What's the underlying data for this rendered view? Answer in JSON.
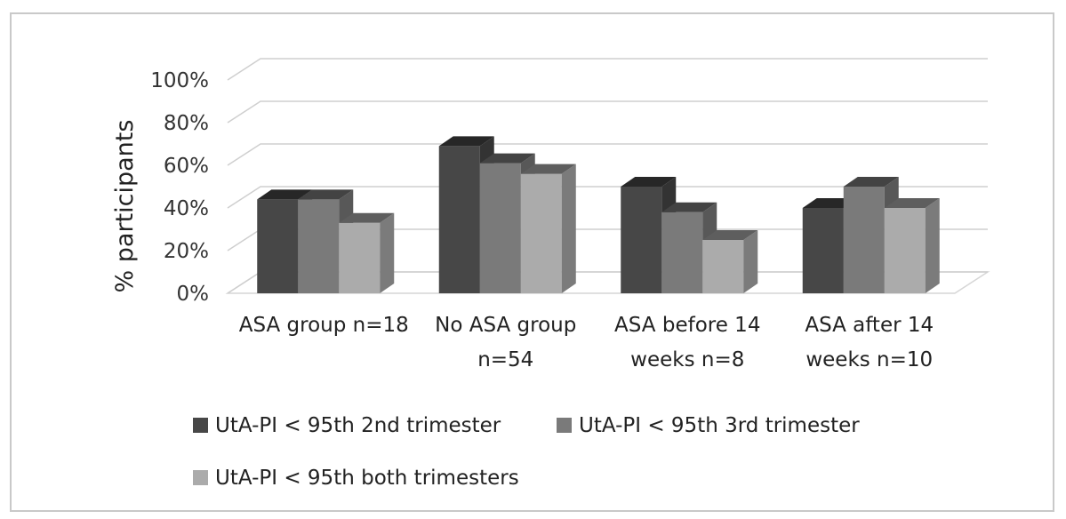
{
  "chart_data": {
    "type": "bar",
    "title": "",
    "xlabel": "",
    "ylabel": "% participants",
    "ylim": [
      0,
      100
    ],
    "yticks": [
      "0%",
      "20%",
      "40%",
      "60%",
      "80%",
      "100%"
    ],
    "categories": [
      [
        "ASA group n=18"
      ],
      [
        "No ASA group",
        "n=54"
      ],
      [
        "ASA before 14",
        "weeks n=8"
      ],
      [
        "ASA after 14",
        "weeks n=10"
      ]
    ],
    "series": [
      {
        "name": "UtA-PI < 95th 2nd trimester",
        "values": [
          44,
          69,
          50,
          40
        ],
        "color": "#474747"
      },
      {
        "name": "UtA-PI < 95th 3rd trimester",
        "values": [
          44,
          61,
          38,
          50
        ],
        "color": "#7a7a7a"
      },
      {
        "name": "UtA-PI < 95th both trimesters",
        "values": [
          33,
          56,
          25,
          40
        ],
        "color": "#ababab"
      }
    ],
    "grid": true,
    "legend": "bottom",
    "style": "3d-clustered-column"
  }
}
